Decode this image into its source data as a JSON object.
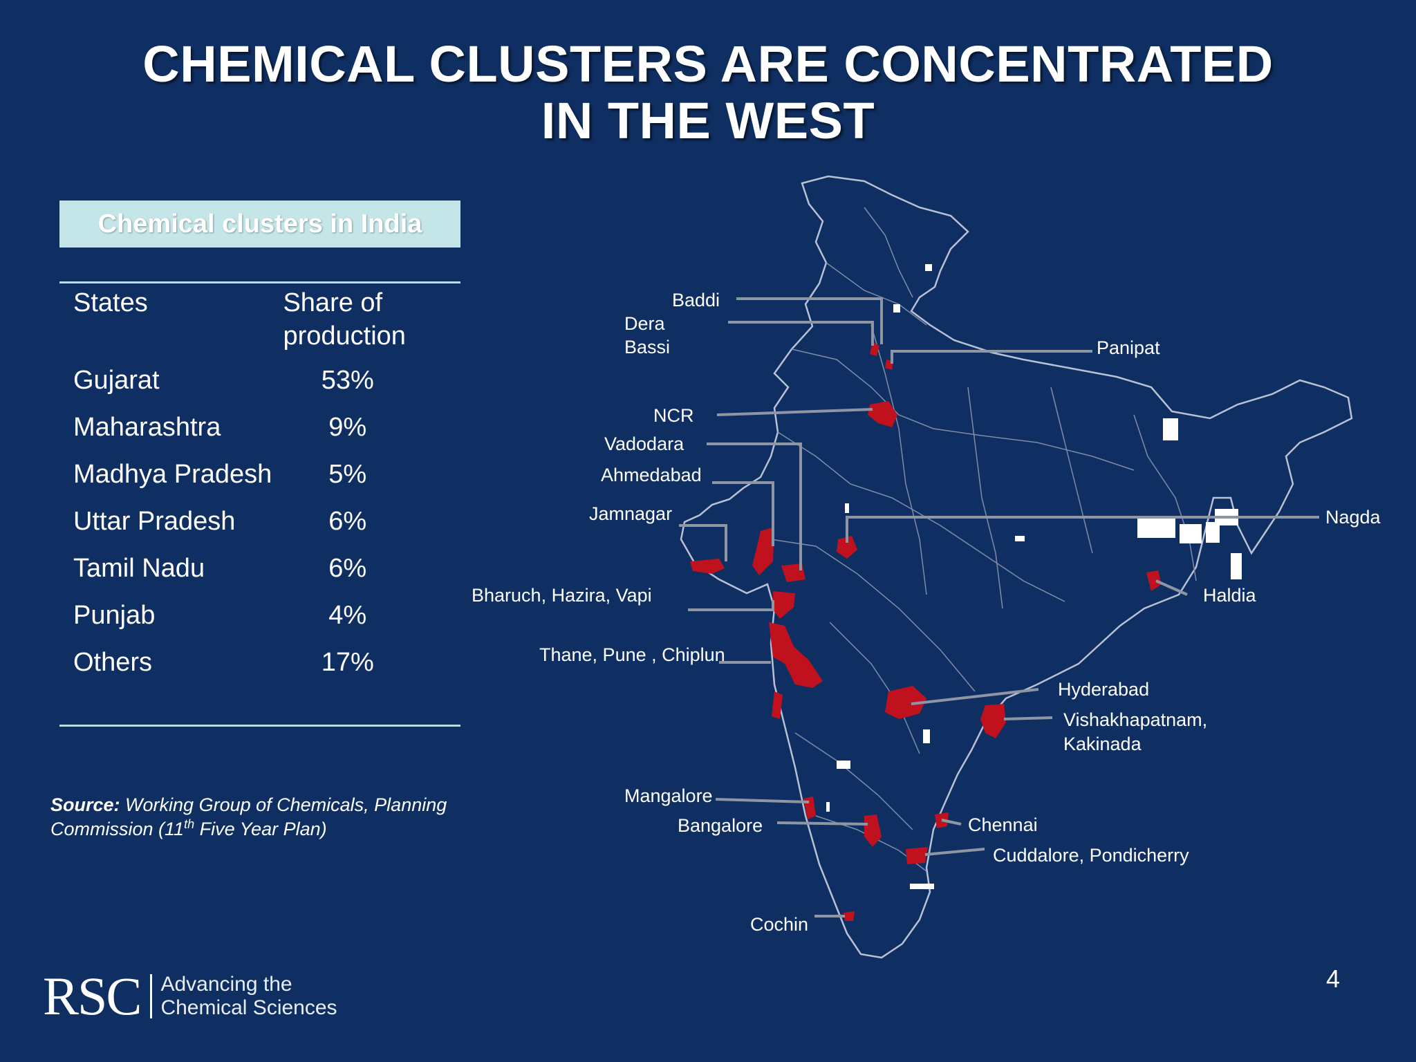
{
  "slide": {
    "title_line1": "CHEMICAL CLUSTERS ARE CONCENTRATED",
    "title_line2": "IN THE WEST",
    "page_number": "4"
  },
  "table": {
    "title": "Chemical clusters in India",
    "headers": [
      "States",
      "Share of production"
    ],
    "rows": [
      {
        "state": "Gujarat",
        "share": "53%"
      },
      {
        "state": "Maharashtra",
        "share": "9%"
      },
      {
        "state": "Madhya Pradesh",
        "share": "5%"
      },
      {
        "state": "Uttar Pradesh",
        "share": "6%"
      },
      {
        "state": "Tamil Nadu",
        "share": "6%"
      },
      {
        "state": "Punjab",
        "share": "4%"
      },
      {
        "state": "Others",
        "share": "17%"
      }
    ]
  },
  "source": {
    "label": "Source:",
    "text_part1": "Working Group of Chemicals, Planning Commission (11",
    "superscript": "th",
    "text_part2": " Five Year Plan)"
  },
  "logo": {
    "mark": "RSC",
    "tagline_line1": "Advancing the",
    "tagline_line2": "Chemical Sciences"
  },
  "map": {
    "cluster_color": "#c0111f",
    "background_color": "#0f2f63",
    "border_color": "#b9c2d4",
    "leader_color": "#8e96a3",
    "clusters": {
      "baddi": "Baddi",
      "dera_bassi_1": "Dera",
      "dera_bassi_2": "Bassi",
      "panipat": "Panipat",
      "ncr": "NCR",
      "vadodara": "Vadodara",
      "ahmedabad": "Ahmedabad",
      "jamnagar": "Jamnagar",
      "nagda": "Nagda",
      "bharuch": "Bharuch, Hazira, Vapi",
      "haldia": "Haldia",
      "thane": "Thane, Pune , Chiplun",
      "hyderabad": "Hyderabad",
      "vizag_1": "Vishakhapatnam,",
      "vizag_2": "Kakinada",
      "mangalore": "Mangalore",
      "chennai": "Chennai",
      "bangalore": "Bangalore",
      "cuddalore": "Cuddalore, Pondicherry",
      "cochin": "Cochin"
    }
  }
}
